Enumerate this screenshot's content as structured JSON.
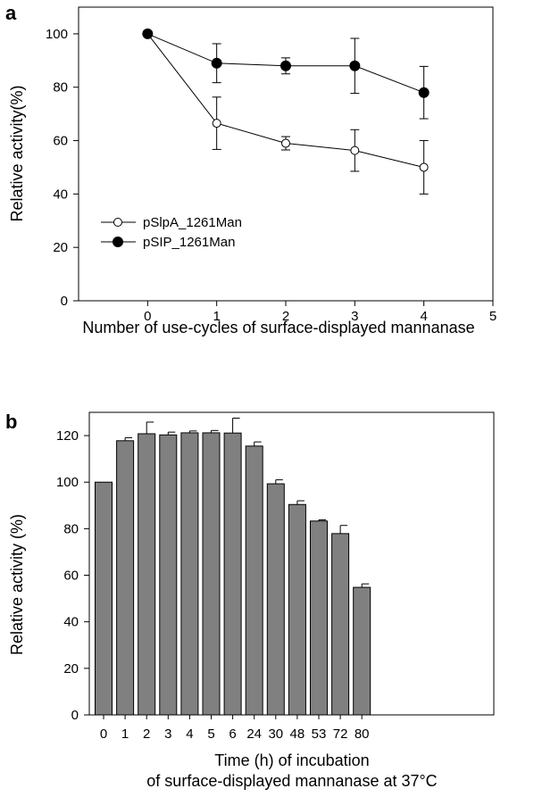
{
  "figure": {
    "panel_a_letter": "a",
    "panel_b_letter": "b"
  },
  "chart_data": [
    {
      "type": "line",
      "panel": "a",
      "xlabel": "Number of use-cycles of surface-displayed mannanase",
      "ylabel": "Relative activity(%)",
      "xlim": [
        -1,
        5
      ],
      "ylim": [
        0,
        110
      ],
      "xticks": [
        "0",
        "1",
        "2",
        "3",
        "4",
        "5"
      ],
      "yticks": [
        "0",
        "20",
        "40",
        "60",
        "80",
        "100"
      ],
      "x": [
        0,
        1,
        2,
        3,
        4
      ],
      "series": [
        {
          "name": "pSlpA_1261Man",
          "marker": "open-circle",
          "values": [
            100,
            66.5,
            59,
            56.3,
            50
          ],
          "errors": [
            0,
            9.8,
            2.5,
            7.8,
            10
          ]
        },
        {
          "name": "pSIP_1261Man",
          "marker": "filled-circle",
          "values": [
            100,
            89,
            88,
            88,
            78
          ],
          "errors": [
            0,
            7.3,
            3,
            10.3,
            9.8
          ]
        }
      ],
      "legend_position": "bottom-left",
      "grid": false
    },
    {
      "type": "bar",
      "panel": "b",
      "xlabel_line1": "Time (h) of incubation",
      "xlabel_line2": "of surface-displayed mannanase at 37°C",
      "ylabel": "Relative activity (%)",
      "ylim": [
        0,
        130
      ],
      "yticks": [
        "0",
        "20",
        "40",
        "60",
        "80",
        "100",
        "120"
      ],
      "categories": [
        "0",
        "1",
        "2",
        "3",
        "4",
        "5",
        "6",
        "24",
        "30",
        "48",
        "53",
        "72",
        "80"
      ],
      "values": [
        100,
        117.8,
        120.8,
        120.3,
        121.2,
        121.2,
        121.1,
        115.5,
        99.3,
        90.4,
        83.3,
        77.9,
        54.8
      ],
      "errors": [
        0,
        1.3,
        5,
        1.2,
        0.8,
        1,
        6.4,
        1.8,
        1.7,
        1.6,
        0.5,
        3.5,
        1.5
      ],
      "bar_color": "#808080",
      "grid": false
    }
  ]
}
